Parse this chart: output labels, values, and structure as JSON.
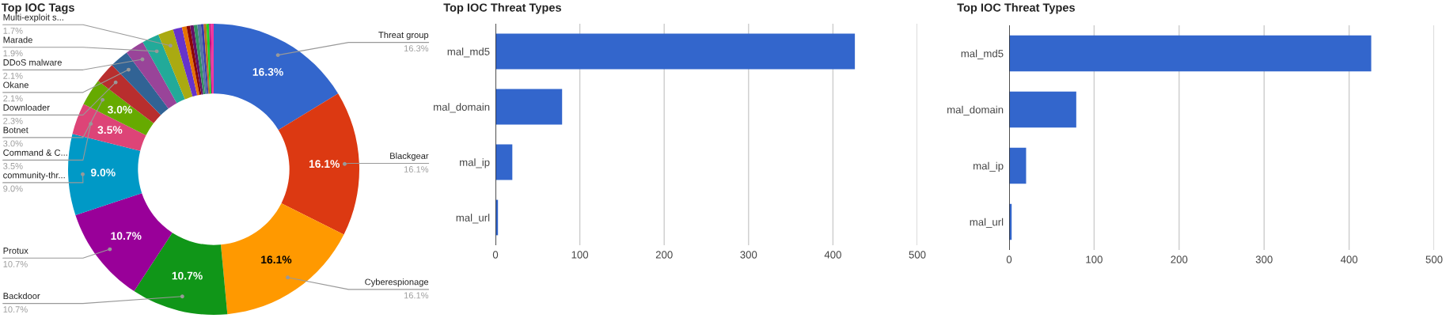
{
  "chart_data": [
    {
      "type": "donut",
      "title": "Top IOC Tags",
      "categories": [
        "Threat group",
        "Blackgear",
        "Cyberespionage",
        "Backdoor",
        "Protux",
        "community-thr...",
        "Command & C...",
        "Botnet",
        "Downloader",
        "Okane",
        "DDoS malware",
        "Marade",
        "Multi-exploit s...",
        null,
        null,
        null,
        null,
        null,
        null,
        null,
        null,
        null,
        null,
        null
      ],
      "values": [
        16.3,
        16.1,
        16.1,
        10.7,
        10.7,
        9.0,
        3.5,
        3.0,
        2.3,
        2.1,
        2.1,
        1.9,
        1.7,
        1.0,
        0.5,
        0.4,
        0.4,
        0.4,
        0.4,
        0.3,
        0.3,
        0.3,
        0.2,
        0.3
      ],
      "colors": [
        "#3366cc",
        "#dc3912",
        "#ff9900",
        "#109618",
        "#990099",
        "#0099c6",
        "#dd4477",
        "#66aa00",
        "#b82e2e",
        "#316395",
        "#994499",
        "#22aa99",
        "#aaaa11",
        "#6633cc",
        "#e67300",
        "#8b0707",
        "#651067",
        "#329262",
        "#5574a6",
        "#3b3eac",
        "#b77322",
        "#16d620",
        "#b91383",
        "#f4359e"
      ],
      "value_labels": [
        "16.3%",
        "16.1%",
        "16.1%",
        "10.7%",
        "10.7%",
        "9.0%",
        "3.5%",
        "3.0%",
        null,
        null,
        null,
        null,
        null,
        null,
        null,
        null,
        null,
        null,
        null,
        null,
        null,
        null,
        null,
        null
      ],
      "annotations": [
        "16.3%",
        "16.1%",
        "16.1%",
        "10.7%",
        "10.7%",
        "9.0%",
        "3.5%",
        "3.0%",
        "2.3%",
        "2.1%",
        "2.1%",
        "1.9%",
        "1.7%"
      ]
    },
    {
      "type": "bar",
      "orientation": "horizontal",
      "title": "Top IOC Threat Types",
      "categories": [
        "mal_md5",
        "mal_domain",
        "mal_ip",
        "mal_url"
      ],
      "values": [
        426,
        79,
        20,
        3
      ],
      "color": "#3366cc",
      "xlim": [
        0,
        500
      ],
      "xticks": [
        0,
        100,
        200,
        300,
        400,
        500
      ],
      "grid": "x"
    },
    {
      "type": "bar",
      "orientation": "horizontal",
      "title": "Top IOC Threat Types",
      "categories": [
        "mal_md5",
        "mal_domain",
        "mal_ip",
        "mal_url"
      ],
      "values": [
        426,
        79,
        20,
        3
      ],
      "color": "#3366cc",
      "xlim": [
        0,
        500
      ],
      "xticks": [
        0,
        100,
        200,
        300,
        400,
        500
      ],
      "grid": "x"
    }
  ]
}
